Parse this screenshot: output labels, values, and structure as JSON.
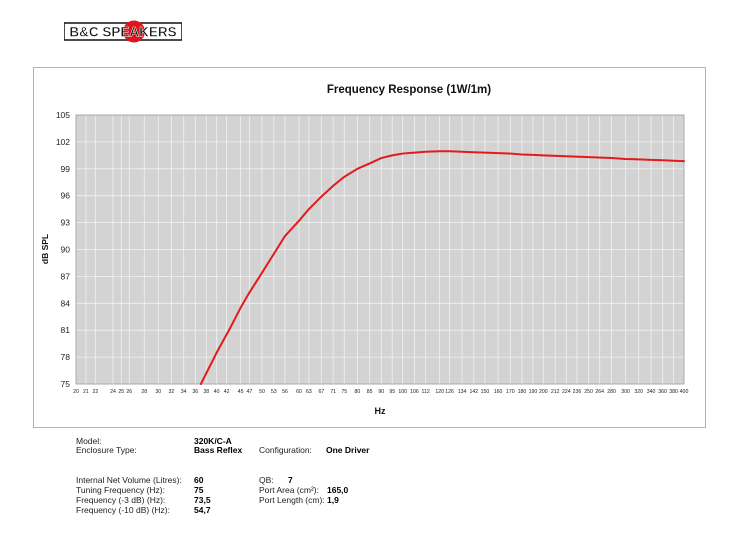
{
  "logo": {
    "text": "B&C SPEAKERS",
    "accent": "#e0141b"
  },
  "chart_data": {
    "type": "line",
    "title": "Frequency Response (1W/1m)",
    "xlabel": "Hz",
    "ylabel": "dB SPL",
    "x_scale": "log",
    "xlim": [
      20,
      400
    ],
    "ylim": [
      75,
      105
    ],
    "yticks": [
      75,
      78,
      81,
      84,
      87,
      90,
      93,
      96,
      99,
      102,
      105
    ],
    "xticks": [
      20,
      21,
      22,
      24,
      25,
      26,
      28,
      30,
      32,
      34,
      36,
      38,
      40,
      42,
      45,
      47,
      50,
      53,
      56,
      60,
      63,
      67,
      71,
      75,
      80,
      85,
      90,
      95,
      100,
      106,
      112,
      120,
      126,
      134,
      142,
      150,
      160,
      170,
      180,
      190,
      200,
      212,
      224,
      236,
      250,
      264,
      280,
      300,
      320,
      340,
      360,
      380,
      400
    ],
    "grid": true,
    "line_color": "#e31a1c",
    "series": [
      {
        "x": [
          37,
          40,
          43,
          45,
          47,
          50,
          53,
          56,
          60,
          63,
          67,
          71,
          75,
          80,
          85,
          90,
          95,
          100,
          106,
          112,
          120,
          126,
          134,
          142,
          150,
          160,
          170,
          180,
          190,
          200,
          224,
          250,
          280,
          300,
          320,
          340,
          360,
          380,
          400
        ],
        "y": [
          75.0,
          78.5,
          81.5,
          83.5,
          85.2,
          87.4,
          89.5,
          91.5,
          93.2,
          94.5,
          95.9,
          97.1,
          98.1,
          99.0,
          99.6,
          100.2,
          100.5,
          100.7,
          100.8,
          100.9,
          100.95,
          100.95,
          100.9,
          100.85,
          100.8,
          100.75,
          100.7,
          100.6,
          100.55,
          100.5,
          100.4,
          100.3,
          100.2,
          100.1,
          100.05,
          100.0,
          99.95,
          99.9,
          99.85
        ]
      }
    ]
  },
  "specs": {
    "model_label": "Model:",
    "model_value": "320K/C-A",
    "enclosure_label": "Enclosure Type:",
    "enclosure_value": "Bass Reflex",
    "configuration_label": "Configuration:",
    "configuration_value": "One Driver",
    "volume_label": "Internal Net Volume (Litres):",
    "volume_value": "60",
    "tuning_label": "Tuning Frequency (Hz):",
    "tuning_value": "75",
    "f3_label": "Frequency (-3 dB) (Hz):",
    "f3_value": "73,5",
    "f10_label": "Frequency (-10 dB) (Hz):",
    "f10_value": "54,7",
    "qb_label": "QB:",
    "qb_value": "7",
    "port_area_label": "Port Area (cm²):",
    "port_area_value": "165,0",
    "port_length_label": "Port Length (cm):",
    "port_length_value": "1,9"
  }
}
